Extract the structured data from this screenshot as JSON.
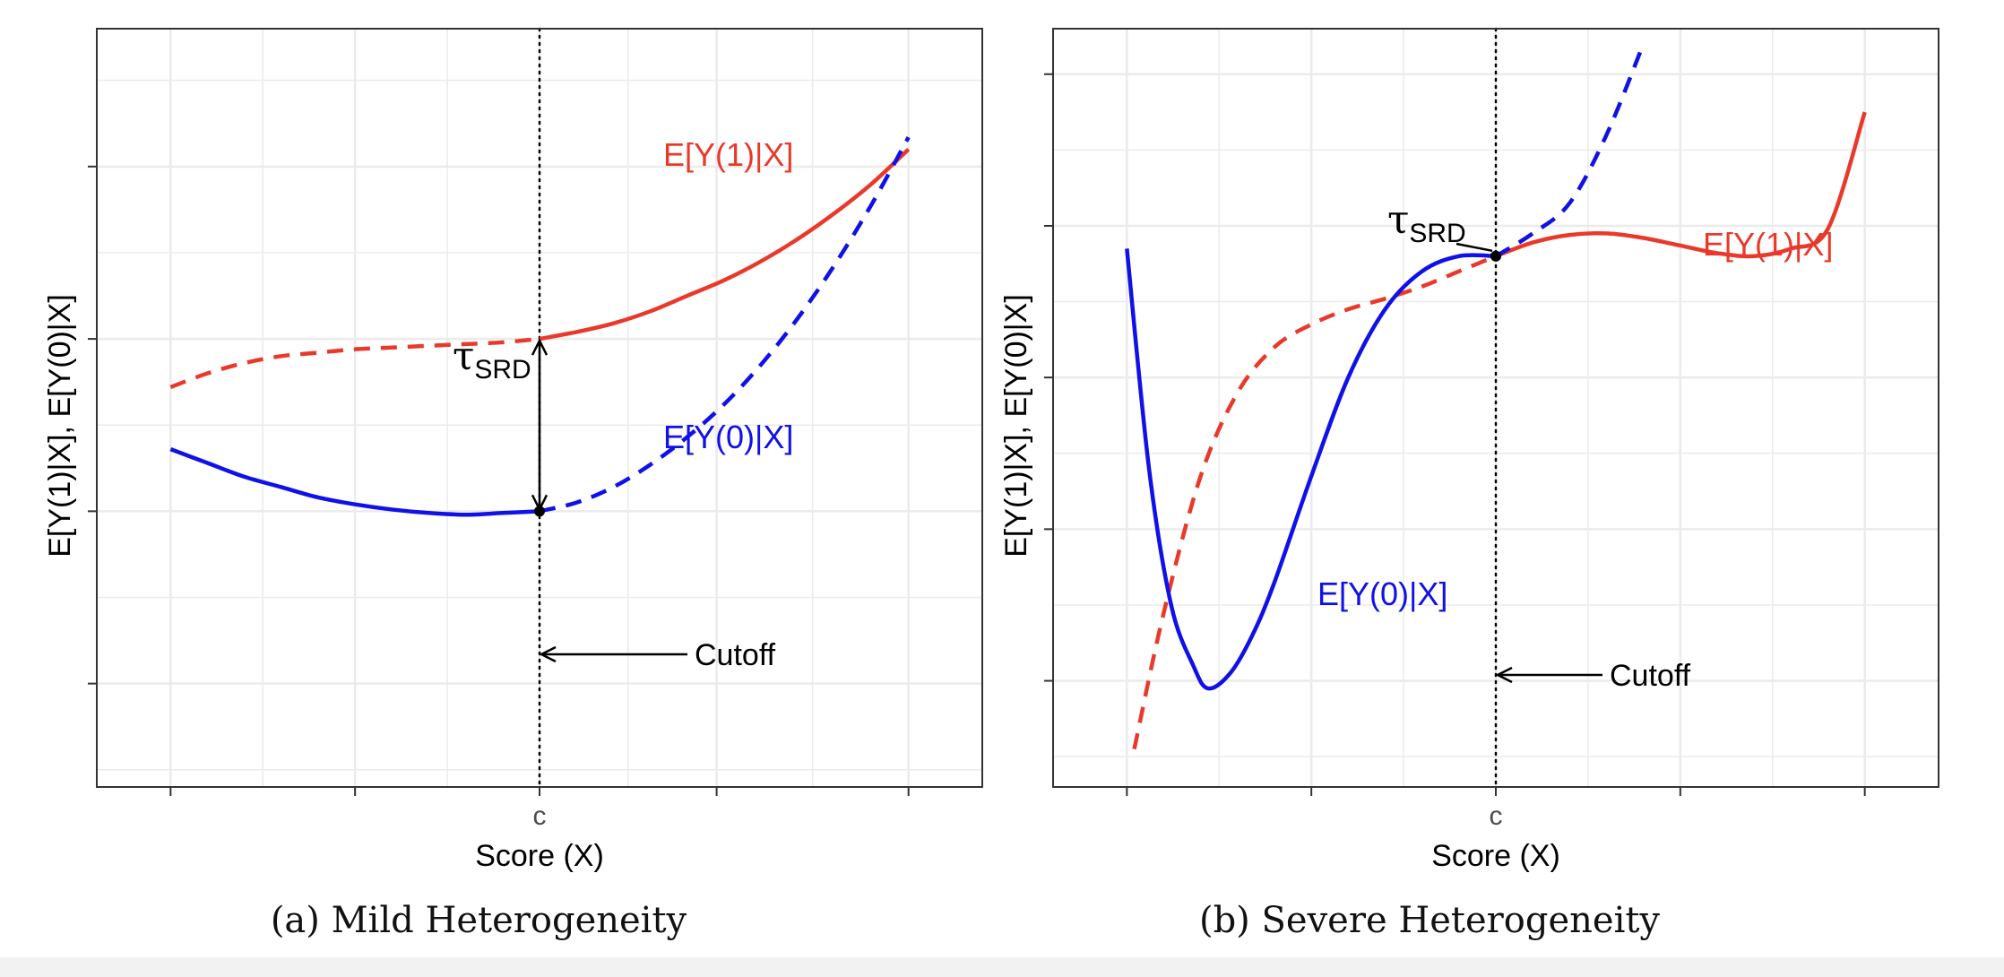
{
  "figure": {
    "panels": [
      {
        "caption": "(a) Mild Heterogeneity",
        "xlabel": "Score (X)",
        "ylabel": "E[Y(1)|X], E[Y(0)|X]",
        "cutoff_tick_label": "c",
        "cutoff_annotation": "Cutoff",
        "tau_symbol": "τ",
        "tau_subscript": "SRD",
        "label_y1": "E[Y(1)|X]",
        "label_y0": "E[Y(0)|X]"
      },
      {
        "caption": "(b) Severe Heterogeneity",
        "xlabel": "Score (X)",
        "ylabel": "E[Y(1)|X], E[Y(0)|X]",
        "cutoff_tick_label": "c",
        "cutoff_annotation": "Cutoff",
        "tau_symbol": "τ",
        "tau_subscript": "SRD",
        "label_y1": "E[Y(1)|X]",
        "label_y0": "E[Y(0)|X]"
      }
    ],
    "colors": {
      "treated": "#e8392b",
      "control": "#1010e8",
      "grid": "#ebebeb",
      "panel_border": "#333333"
    }
  },
  "chart_data": [
    {
      "type": "line",
      "title": "(a) Mild Heterogeneity",
      "xlabel": "Score (X)",
      "ylabel": "E[Y(1)|X], E[Y(0)|X]",
      "xlim": [
        -0.1,
        1.1
      ],
      "ylim": [
        -1.6,
        2.8
      ],
      "x_ticks": [
        0,
        0.25,
        0.5,
        0.74,
        1.0
      ],
      "x_tick_labels": [
        "",
        "",
        "c",
        "",
        ""
      ],
      "y_ticks": [
        -1,
        0,
        1,
        2
      ],
      "cutoff": 0.5,
      "tau_srd": 1.0,
      "grid": true,
      "series": [
        {
          "name": "E[Y(1)|X]",
          "line": "solid-right-dashed-left",
          "x": [
            0,
            0.05,
            0.1,
            0.15,
            0.2,
            0.25,
            0.3,
            0.35,
            0.4,
            0.45,
            0.5,
            0.55,
            0.6,
            0.65,
            0.7,
            0.75,
            0.8,
            0.85,
            0.9,
            0.95,
            1.0
          ],
          "values": [
            0.72,
            0.8,
            0.86,
            0.9,
            0.92,
            0.94,
            0.95,
            0.96,
            0.97,
            0.98,
            1.0,
            1.04,
            1.09,
            1.16,
            1.25,
            1.34,
            1.45,
            1.58,
            1.73,
            1.9,
            2.1
          ]
        },
        {
          "name": "E[Y(0)|X]",
          "line": "solid-left-dashed-right",
          "x": [
            0,
            0.05,
            0.1,
            0.15,
            0.2,
            0.25,
            0.3,
            0.35,
            0.4,
            0.45,
            0.5,
            0.55,
            0.6,
            0.65,
            0.7,
            0.75,
            0.8,
            0.85,
            0.9,
            0.95,
            1.0
          ],
          "values": [
            0.36,
            0.28,
            0.2,
            0.14,
            0.08,
            0.04,
            0.01,
            -0.01,
            -0.02,
            -0.01,
            0.0,
            0.05,
            0.14,
            0.27,
            0.43,
            0.62,
            0.85,
            1.12,
            1.43,
            1.78,
            2.17
          ]
        }
      ]
    },
    {
      "type": "line",
      "title": "(b) Severe Heterogeneity",
      "xlabel": "Score (X)",
      "ylabel": "E[Y(1)|X], E[Y(0)|X]",
      "xlim": [
        -0.1,
        1.1
      ],
      "ylim": [
        -3.7,
        1.3
      ],
      "x_ticks": [
        0,
        0.25,
        0.5,
        0.75,
        1.0
      ],
      "x_tick_labels": [
        "",
        "",
        "c",
        "",
        ""
      ],
      "y_ticks": [
        -3,
        -2,
        -1,
        0,
        1
      ],
      "cutoff": 0.5,
      "tau_srd": 0.0,
      "grid": true,
      "series": [
        {
          "name": "E[Y(1)|X]",
          "line": "solid-right-dashed-left",
          "x": [
            0.01,
            0.05,
            0.1,
            0.15,
            0.2,
            0.25,
            0.3,
            0.35,
            0.4,
            0.45,
            0.5,
            0.55,
            0.6,
            0.65,
            0.7,
            0.75,
            0.8,
            0.85,
            0.9,
            0.95,
            1.0
          ],
          "values": [
            -3.45,
            -2.55,
            -1.65,
            -1.1,
            -0.8,
            -0.65,
            -0.55,
            -0.48,
            -0.4,
            -0.3,
            -0.2,
            -0.11,
            -0.06,
            -0.05,
            -0.08,
            -0.13,
            -0.18,
            -0.2,
            -0.15,
            -0.02,
            0.75
          ]
        },
        {
          "name": "E[Y(0)|X]",
          "line": "solid-left-dashed-right",
          "x": [
            0.0,
            0.03,
            0.06,
            0.09,
            0.11,
            0.14,
            0.17,
            0.2,
            0.25,
            0.3,
            0.35,
            0.4,
            0.45,
            0.5,
            0.55,
            0.6,
            0.65,
            0.7
          ],
          "values": [
            -0.15,
            -1.6,
            -2.5,
            -2.9,
            -3.05,
            -2.95,
            -2.7,
            -2.35,
            -1.65,
            -1.0,
            -0.55,
            -0.3,
            -0.2,
            -0.2,
            -0.05,
            0.15,
            0.6,
            1.2
          ]
        }
      ]
    }
  ]
}
